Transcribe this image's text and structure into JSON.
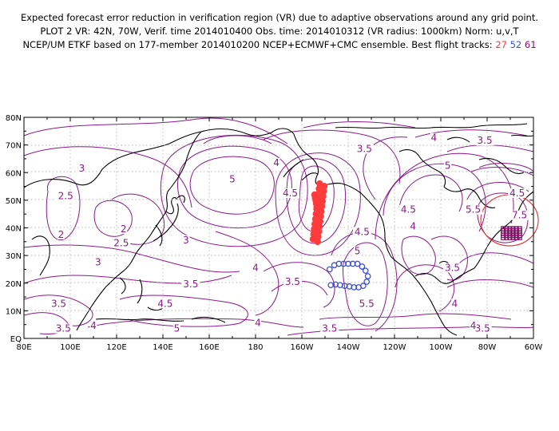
{
  "header": {
    "line1": "Expected forecast error reduction in verification region (VR) due to adaptive observations around any grid point.",
    "line2": "PLOT 2 VR: 42N, 70W, Verif. time 2014010400 Obs. time: 2014010312 (VR radius: 1000km) Norm: u,v,T",
    "line3_prefix": "NCEP/UM ETKF based on 177-member 2014010200 NCEP+ECMWF+CMC ensemble. Best flight tracks: ",
    "track_ids": [
      "27",
      "52",
      "61"
    ]
  },
  "colors": {
    "contour": "#8b1a8b",
    "coast": "#000000",
    "grid": "#a0a0a0",
    "track_27": "#ff3b3b",
    "track_52": "#3a4fd8",
    "track_61": "#8b0a6b",
    "vr_circle": "#e04040"
  },
  "axes": {
    "lon_labels": [
      "80E",
      "100E",
      "120E",
      "140E",
      "160E",
      "180",
      "160W",
      "140W",
      "120W",
      "100W",
      "80W",
      "60W"
    ],
    "lat_labels": [
      "80N",
      "70N",
      "60N",
      "50N",
      "40N",
      "30N",
      "20N",
      "10N",
      "EQ"
    ]
  },
  "contour_labels": [
    {
      "text": "3",
      "lon": 105,
      "lat": 61
    },
    {
      "text": "2.5",
      "lon": 98,
      "lat": 51
    },
    {
      "text": "2",
      "lon": 96,
      "lat": 37
    },
    {
      "text": "2",
      "lon": 123,
      "lat": 39
    },
    {
      "text": "2.5",
      "lon": 122,
      "lat": 34
    },
    {
      "text": "3",
      "lon": 112,
      "lat": 27
    },
    {
      "text": "3",
      "lon": 150,
      "lat": 35
    },
    {
      "text": "3.5",
      "lon": 152,
      "lat": 19
    },
    {
      "text": "3.5",
      "lon": 95,
      "lat": 12
    },
    {
      "text": "3.5",
      "lon": 97,
      "lat": 3
    },
    {
      "text": "4",
      "lon": 110,
      "lat": 4
    },
    {
      "text": "4.5",
      "lon": 141,
      "lat": 12
    },
    {
      "text": "5",
      "lon": 146,
      "lat": 3
    },
    {
      "text": "4",
      "lon": 181,
      "lat": 5
    },
    {
      "text": "5",
      "lon": 170,
      "lat": 57
    },
    {
      "text": "4",
      "lon": 189,
      "lat": 63
    },
    {
      "text": "4.5",
      "lon": 195,
      "lat": 52
    },
    {
      "text": "4",
      "lon": 180,
      "lat": 25
    },
    {
      "text": "3.5",
      "lon": 196,
      "lat": 20
    },
    {
      "text": "3.5",
      "lon": 227,
      "lat": 68
    },
    {
      "text": "4",
      "lon": 257,
      "lat": 72
    },
    {
      "text": "3.5",
      "lon": 279,
      "lat": 71
    },
    {
      "text": "5",
      "lon": 224,
      "lat": 31
    },
    {
      "text": "4.5",
      "lon": 226,
      "lat": 38
    },
    {
      "text": "5.5",
      "lon": 228,
      "lat": 12
    },
    {
      "text": "4.5",
      "lon": 246,
      "lat": 46
    },
    {
      "text": "4",
      "lon": 248,
      "lat": 40
    },
    {
      "text": "5",
      "lon": 263,
      "lat": 62
    },
    {
      "text": "5.5",
      "lon": 274,
      "lat": 46
    },
    {
      "text": "4.5",
      "lon": 293,
      "lat": 52
    },
    {
      "text": "7.5",
      "lon": 294,
      "lat": 44
    },
    {
      "text": "3.5",
      "lon": 265,
      "lat": 25
    },
    {
      "text": "4",
      "lon": 266,
      "lat": 12
    },
    {
      "text": "3.5",
      "lon": 212,
      "lat": 3
    },
    {
      "text": "3.5",
      "lon": 278,
      "lat": 3
    },
    {
      "text": "4",
      "lon": 274,
      "lat": 4
    }
  ]
}
